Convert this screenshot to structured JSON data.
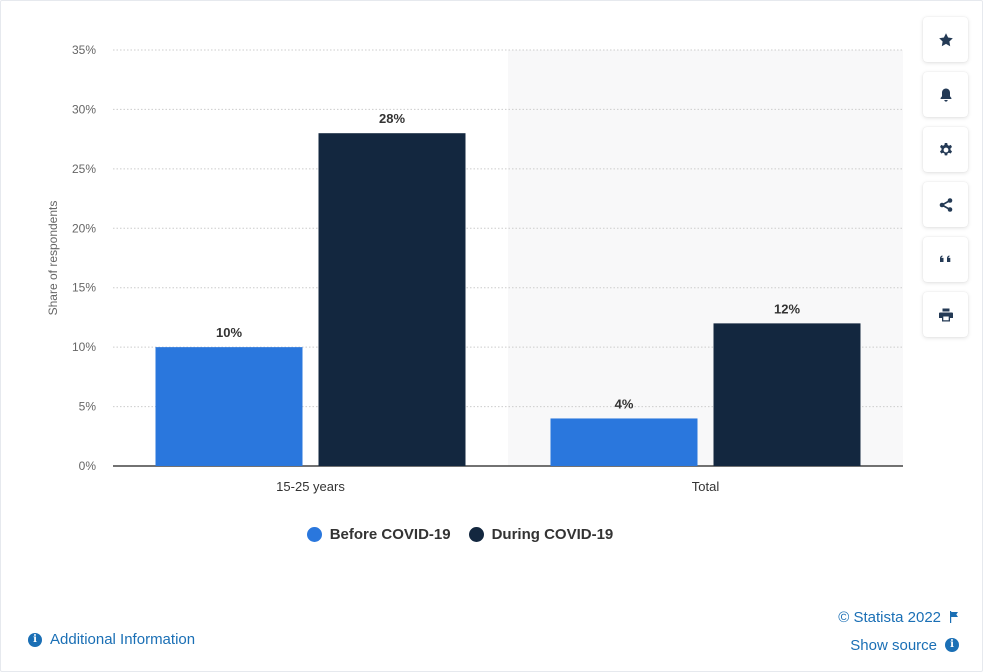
{
  "chart_data": {
    "type": "bar",
    "categories": [
      "15-25 years",
      "Total"
    ],
    "series": [
      {
        "name": "Before COVID-19",
        "values": [
          10,
          4
        ],
        "color": "#2a77dd"
      },
      {
        "name": "During COVID-19",
        "values": [
          28,
          12
        ],
        "color": "#13273f"
      }
    ],
    "ylabel": "Share of respondents",
    "ylim": [
      0,
      35
    ],
    "yticks": [
      "0%",
      "5%",
      "10%",
      "15%",
      "20%",
      "25%",
      "30%",
      "35%"
    ],
    "value_suffix": "%",
    "grid": true,
    "legend_position": "bottom"
  },
  "toolbar": {
    "buttons": [
      {
        "icon": "star-icon"
      },
      {
        "icon": "bell-icon"
      },
      {
        "icon": "gear-icon"
      },
      {
        "icon": "share-icon"
      },
      {
        "icon": "quote-icon"
      },
      {
        "icon": "print-icon"
      }
    ]
  },
  "footer": {
    "additional_info": "Additional Information",
    "copyright": "© Statista 2022",
    "show_source": "Show source"
  },
  "colors": {
    "link": "#1a6fb5",
    "before": "#2a77dd",
    "during": "#13273f"
  }
}
